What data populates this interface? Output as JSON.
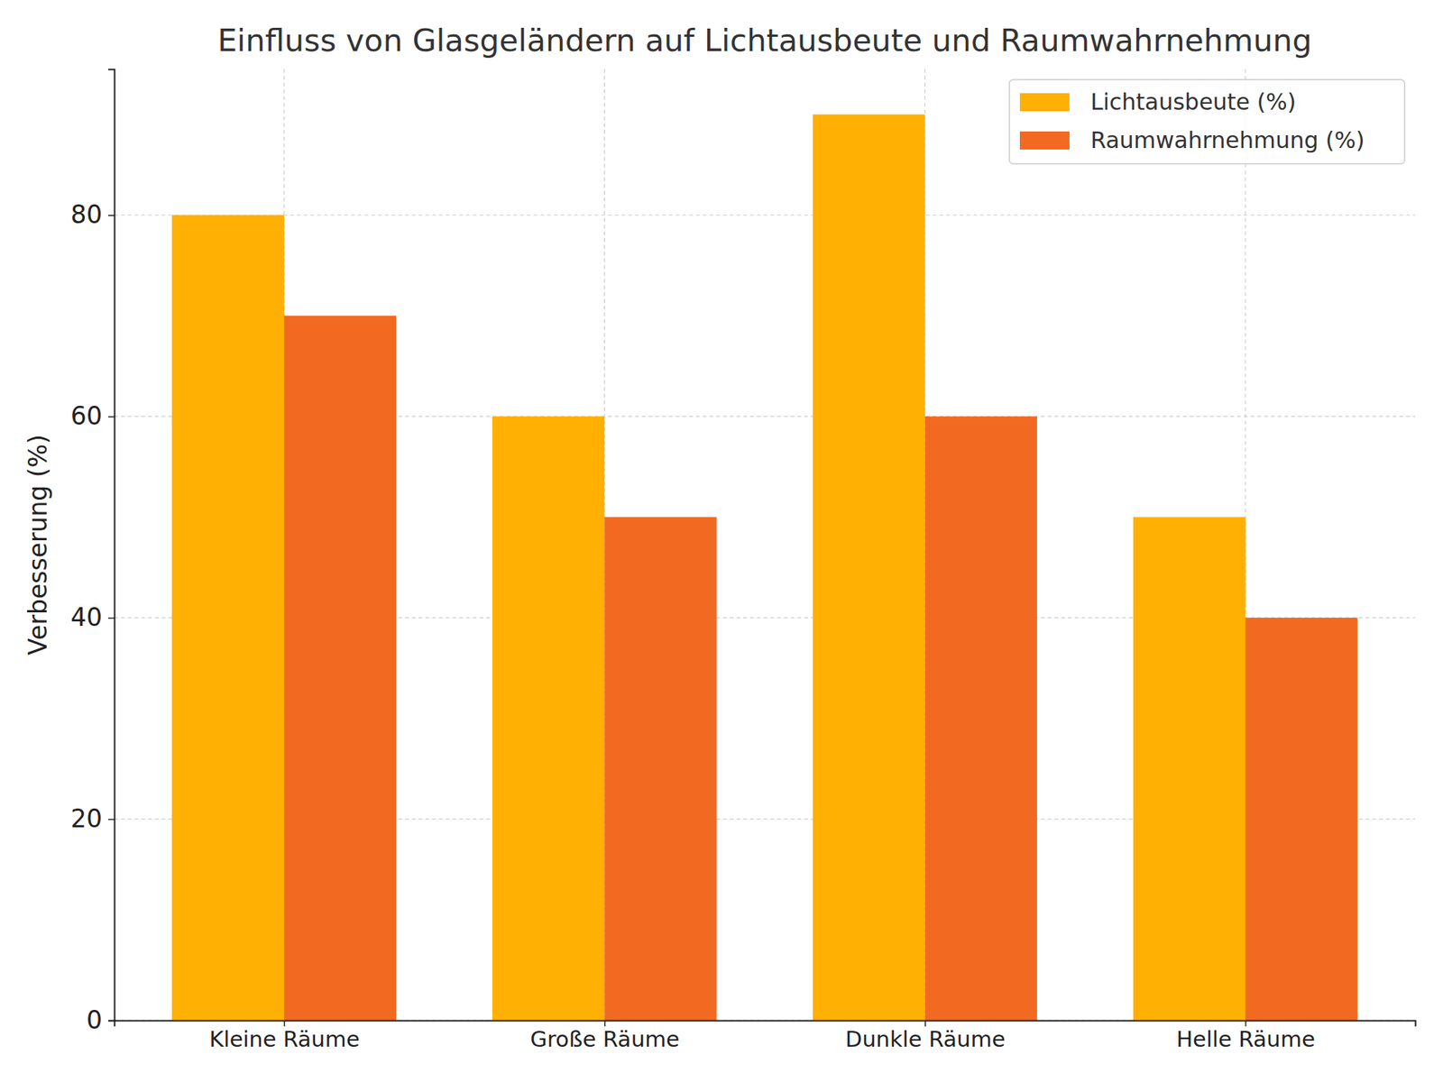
{
  "chart_data": {
    "type": "bar",
    "title": "Einfluss von Glasgeländern auf Lichtausbeute und Raumwahrnehmung",
    "y_label": "Verbesserung (%)",
    "categories": [
      "Kleine Räume",
      "Große Räume",
      "Dunkle Räume",
      "Helle Räume"
    ],
    "series": [
      {
        "name": "Lichtausbeute (%)",
        "color": "#FFB003",
        "values": [
          80,
          60,
          90,
          50
        ]
      },
      {
        "name": "Raumwahrnehmung (%)",
        "color": "#F26A22",
        "values": [
          70,
          50,
          60,
          40
        ]
      }
    ],
    "ylim": [
      0,
      94.5
    ],
    "yticks": [
      0,
      20,
      40,
      60,
      80
    ],
    "grid": true,
    "legend": "upper right"
  }
}
